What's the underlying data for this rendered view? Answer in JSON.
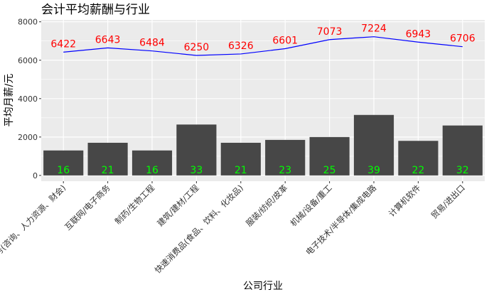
{
  "chart_data": {
    "type": "bar",
    "title": "会计平均薪酬与行业",
    "xlabel": "公司行业",
    "ylabel": "平均月薪/元",
    "ylim": [
      -300,
      8100
    ],
    "yticks": [
      0,
      2000,
      4000,
      6000,
      8000
    ],
    "grid": true,
    "categories": [
      "专业服务(咨询、人力资源、财会)",
      "互联网/电子商务",
      "制药/生物工程",
      "建筑/建材/工程",
      "快速消费品(食品、饮料、化妆品)",
      "服装/纺织/皮革",
      "机械/设备/重工",
      "电子技术/半导体/集成电路",
      "计算机软件",
      "贸易/进出口"
    ],
    "series": [
      {
        "type": "bar",
        "values": [
          1300,
          1700,
          1300,
          2650,
          1700,
          1850,
          2000,
          3150,
          1800,
          2600
        ],
        "labels": [
          "16",
          "21",
          "16",
          "33",
          "21",
          "23",
          "25",
          "39",
          "22",
          "32"
        ],
        "color": "#474747",
        "label_color": "#00ff00"
      },
      {
        "type": "line",
        "values": [
          6422,
          6643,
          6484,
          6250,
          6326,
          6601,
          7073,
          7224,
          6943,
          6706
        ],
        "labels": [
          "6422",
          "6643",
          "6484",
          "6250",
          "6326",
          "6601",
          "7073",
          "7224",
          "6943",
          "6706"
        ],
        "color": "#0000ff",
        "label_color": "#ff0000"
      }
    ],
    "colors": {
      "panel_background": "#ebebeb",
      "grid": "#ffffff"
    }
  }
}
